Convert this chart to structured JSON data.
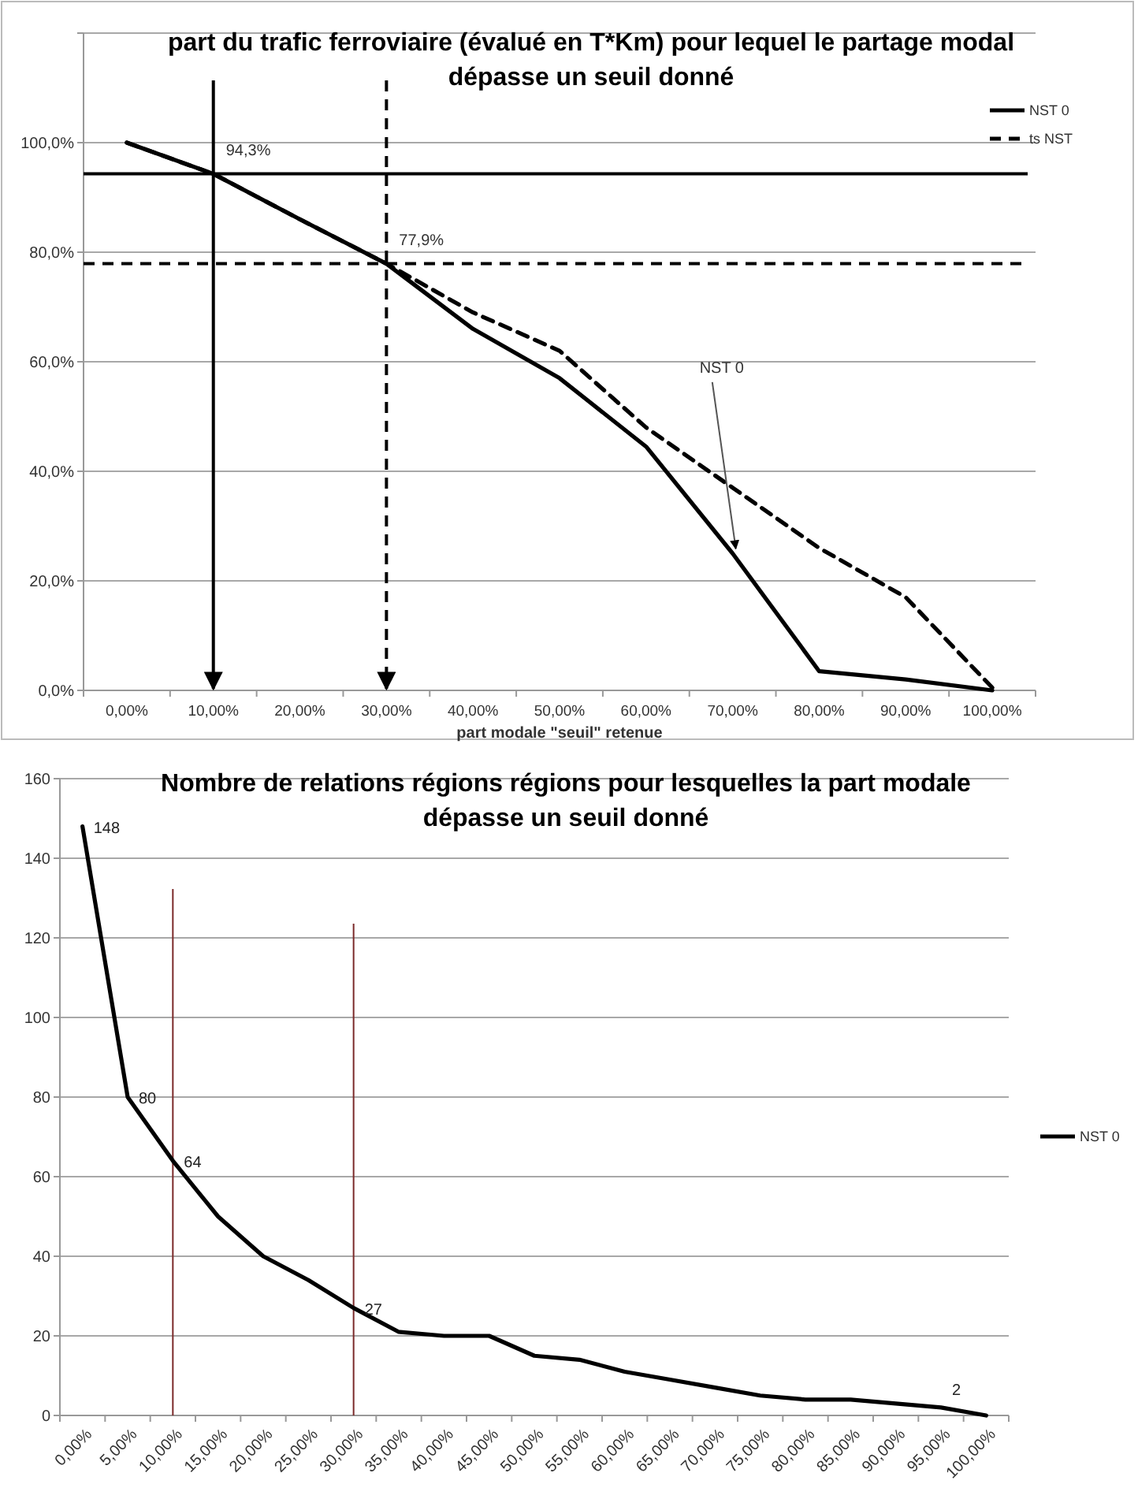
{
  "chart_data": [
    {
      "type": "line",
      "title": "part du trafic ferroviaire (évalué en T*Km) pour lequel le partage modal dépasse un seuil donné",
      "xlabel": "part modale \"seuil\" retenue",
      "categories": [
        "0,00%",
        "10,00%",
        "20,00%",
        "30,00%",
        "40,00%",
        "50,00%",
        "60,00%",
        "70,00%",
        "80,00%",
        "90,00%",
        "100,00%"
      ],
      "series": [
        {
          "name": "NST 0",
          "color": "#000000",
          "line_style": "solid",
          "values": [
            100,
            94.3,
            86,
            77.9,
            66,
            57,
            44.5,
            25,
            3.5,
            2,
            0
          ]
        },
        {
          "name": "ts NST",
          "color": "#000000",
          "line_style": "dashed",
          "values": [
            100,
            94.3,
            86,
            77.9,
            69,
            62,
            48,
            37,
            26,
            17,
            0.5
          ]
        }
      ],
      "ylim": [
        0,
        120
      ],
      "yticks": [
        {
          "value": 0,
          "label": "0,0%"
        },
        {
          "value": 20,
          "label": "20,0%"
        },
        {
          "value": 40,
          "label": "40,0%"
        },
        {
          "value": 60,
          "label": "60,0%"
        },
        {
          "value": 80,
          "label": "80,0%"
        },
        {
          "value": 100,
          "label": "100,0%"
        },
        {
          "value": 120,
          "label": null
        }
      ],
      "grid": "y",
      "legend": "top right",
      "ref_lines": [
        {
          "axis": "y",
          "value": 94.3,
          "label": "94,3%",
          "color": "#000000",
          "line_style": "solid"
        },
        {
          "axis": "y",
          "value": 77.9,
          "label": "77,9%",
          "color": "#000000",
          "line_style": "dashed"
        },
        {
          "axis": "x",
          "value": "10,00%",
          "color": "#000000",
          "line_style": "solid"
        },
        {
          "axis": "x",
          "value": "30,00%",
          "color": "#000000",
          "line_style": "dashed"
        }
      ],
      "annotations": [
        {
          "text": "NST 0",
          "x": "70,00%",
          "y": 25
        }
      ]
    },
    {
      "type": "line",
      "title": "Nombre de relations régions régions pour lesquelles la part modale dépasse un seuil donné",
      "categories": [
        "0,00%",
        "5,00%",
        "10,00%",
        "15,00%",
        "20,00%",
        "25,00%",
        "30,00%",
        "35,00%",
        "40,00%",
        "45,00%",
        "50,00%",
        "55,00%",
        "60,00%",
        "65,00%",
        "70,00%",
        "75,00%",
        "80,00%",
        "85,00%",
        "90,00%",
        "95,00%",
        "100,00%"
      ],
      "series": [
        {
          "name": "NST 0",
          "color": "#000000",
          "values": [
            148,
            80,
            64,
            50,
            40,
            34,
            27,
            21,
            20,
            20,
            15,
            14,
            11,
            9,
            7,
            5,
            4,
            4,
            3,
            2,
            0
          ],
          "value_labels": [
            "148",
            "80",
            "64",
            null,
            null,
            null,
            "27",
            null,
            null,
            null,
            null,
            null,
            null,
            null,
            null,
            null,
            null,
            null,
            null,
            "2",
            null
          ]
        }
      ],
      "ylim": [
        0,
        160
      ],
      "yticks": [
        0,
        20,
        40,
        60,
        80,
        100,
        120,
        140,
        160
      ],
      "grid": "y",
      "legend": "right",
      "ref_lines": [
        {
          "axis": "x",
          "value": "10,00%",
          "color": "#7b2a2a"
        },
        {
          "axis": "x",
          "value": "30,00%",
          "color": "#7b2a2a"
        }
      ]
    }
  ]
}
